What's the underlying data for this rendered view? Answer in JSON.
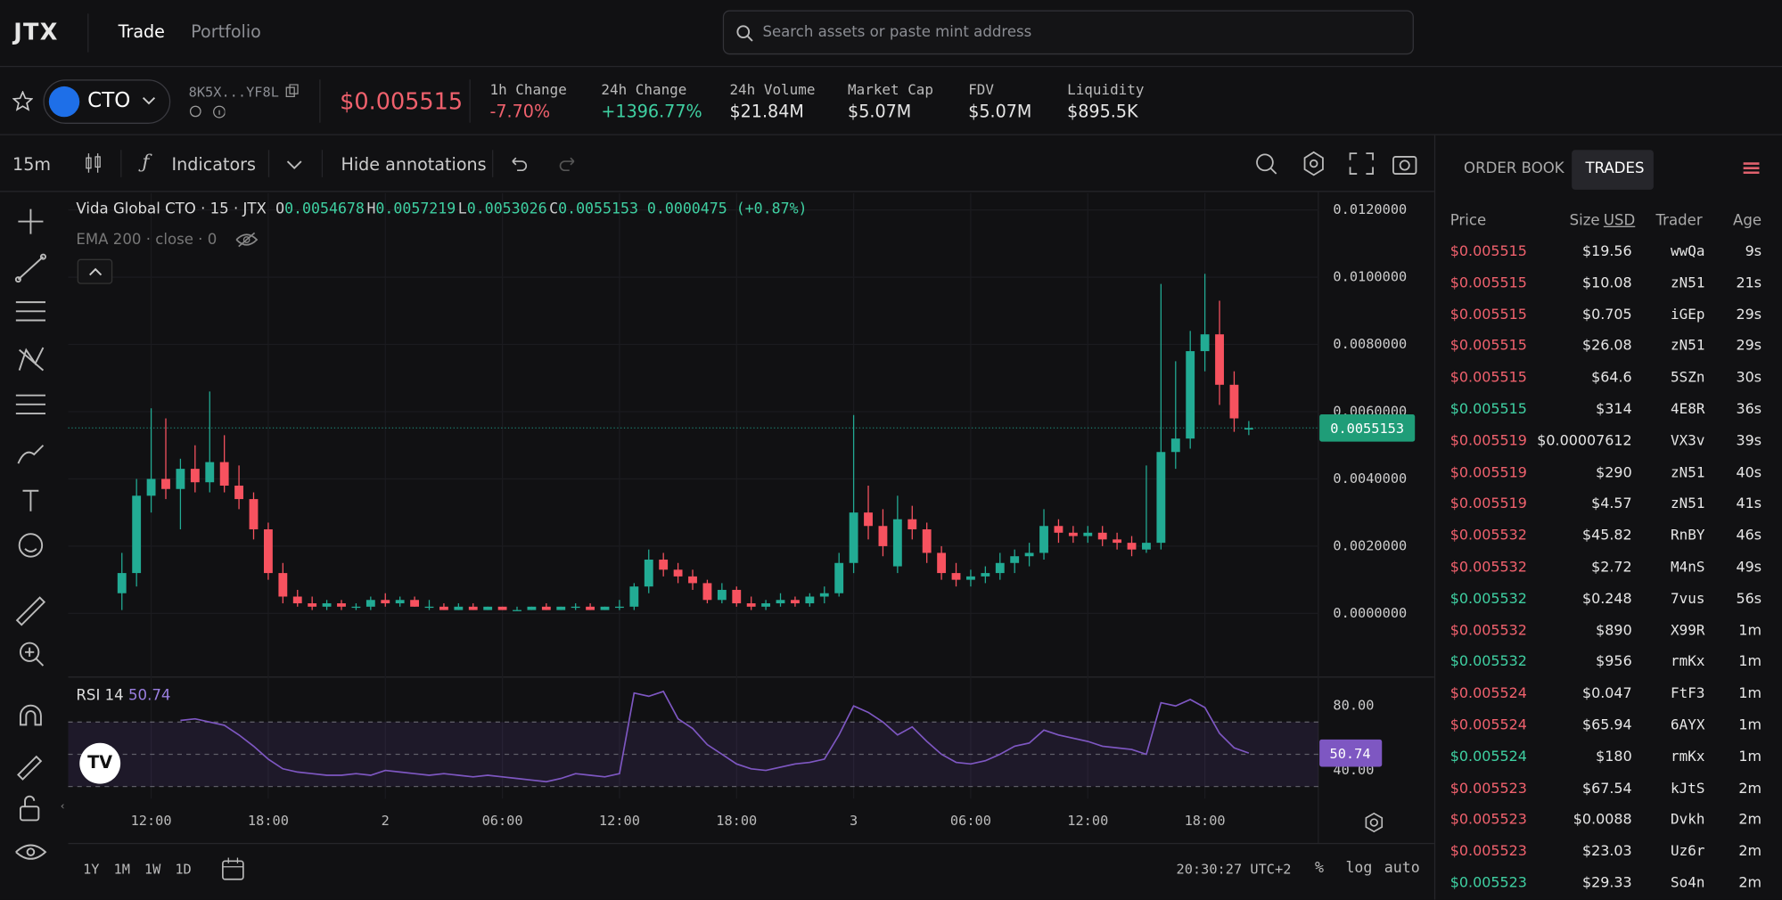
{
  "nav": {
    "logo": "JTX",
    "tabs": [
      "Trade",
      "Portfolio"
    ],
    "search_placeholder": "Search assets or paste mint address"
  },
  "ticker": {
    "symbol": "CTO",
    "address": "8K5X...YF8L",
    "price": "$0.005515",
    "stats": [
      {
        "label": "1h Change",
        "value": "-7.70%",
        "color": "#f0616d"
      },
      {
        "label": "24h Change",
        "value": "+1396.77%",
        "color": "#3fd0a2"
      },
      {
        "label": "24h Volume",
        "value": "$21.84M",
        "color": "#e6e6e6"
      },
      {
        "label": "Market Cap",
        "value": "$5.07M",
        "color": "#e6e6e6"
      },
      {
        "label": "FDV",
        "value": "$5.07M",
        "color": "#e6e6e6"
      },
      {
        "label": "Liquidity",
        "value": "$895.5K",
        "color": "#e6e6e6"
      }
    ]
  },
  "toolbar": {
    "interval": "15m",
    "indicators": "Indicators",
    "hide_annotations": "Hide annotations"
  },
  "chart_data": {
    "type": "candlestick",
    "legend": {
      "title": "Vida Global CTO · 15 · JTX",
      "fields": [
        {
          "key": "O",
          "value": "0.0054678"
        },
        {
          "key": "H",
          "value": "0.0057219"
        },
        {
          "key": "L",
          "value": "0.0053026"
        },
        {
          "key": "C",
          "value": "0.0055153"
        }
      ],
      "change": "0.0000475 (+0.87%)"
    },
    "ema": "EMA 200 · close · 0",
    "up_color": "#22ab94",
    "down_color": "#f7525f",
    "candles": [
      [
        0.0006,
        0.0018,
        0.0001,
        0.0012
      ],
      [
        0.0012,
        0.004,
        0.0008,
        0.0035
      ],
      [
        0.0035,
        0.0061,
        0.003,
        0.004
      ],
      [
        0.004,
        0.0058,
        0.0034,
        0.0037
      ],
      [
        0.0037,
        0.0046,
        0.0025,
        0.0043
      ],
      [
        0.0043,
        0.005,
        0.0036,
        0.0039
      ],
      [
        0.0039,
        0.0066,
        0.0036,
        0.0045
      ],
      [
        0.0045,
        0.0053,
        0.0036,
        0.0038
      ],
      [
        0.0038,
        0.0044,
        0.0031,
        0.0034
      ],
      [
        0.0034,
        0.0036,
        0.0022,
        0.0025
      ],
      [
        0.0025,
        0.0027,
        0.001,
        0.0012
      ],
      [
        0.0012,
        0.0015,
        0.0003,
        0.0005
      ],
      [
        0.0005,
        0.0007,
        0.0002,
        0.0003
      ],
      [
        0.0003,
        0.0005,
        0.0001,
        0.0002
      ],
      [
        0.0002,
        0.0004,
        0.0001,
        0.0003
      ],
      [
        0.0003,
        0.0004,
        0.0001,
        0.0002
      ],
      [
        0.0002,
        0.0003,
        0.0001,
        0.0002
      ],
      [
        0.0002,
        0.0005,
        0.0001,
        0.0004
      ],
      [
        0.0004,
        0.0006,
        0.0002,
        0.0003
      ],
      [
        0.0003,
        0.0005,
        0.0002,
        0.0004
      ],
      [
        0.0004,
        0.0005,
        0.0002,
        0.0002
      ],
      [
        0.0002,
        0.0004,
        0.0001,
        0.0002
      ],
      [
        0.0002,
        0.0003,
        0.0001,
        0.0001
      ],
      [
        0.0001,
        0.0003,
        0.0001,
        0.0002
      ],
      [
        0.0002,
        0.0003,
        0.0001,
        0.0001
      ],
      [
        0.0001,
        0.0002,
        0.0001,
        0.0002
      ],
      [
        0.0002,
        0.0002,
        0.0001,
        0.0001
      ],
      [
        0.0001,
        0.0002,
        0.0001,
        0.0001
      ],
      [
        0.0001,
        0.0002,
        0.0001,
        0.0002
      ],
      [
        0.0002,
        0.0003,
        0.0001,
        0.0001
      ],
      [
        0.0001,
        0.0002,
        0.0001,
        0.0002
      ],
      [
        0.0002,
        0.0003,
        0.0001,
        0.0002
      ],
      [
        0.0002,
        0.0003,
        0.0001,
        0.0001
      ],
      [
        0.0001,
        0.0002,
        0.0001,
        0.0002
      ],
      [
        0.0002,
        0.0004,
        0.0001,
        0.0002
      ],
      [
        0.0002,
        0.0009,
        0.0001,
        0.0008
      ],
      [
        0.0008,
        0.0019,
        0.0006,
        0.0016
      ],
      [
        0.0016,
        0.0018,
        0.0011,
        0.0013
      ],
      [
        0.0013,
        0.0015,
        0.0009,
        0.0011
      ],
      [
        0.0011,
        0.0013,
        0.0007,
        0.0009
      ],
      [
        0.0009,
        0.001,
        0.0003,
        0.0004
      ],
      [
        0.0004,
        0.0009,
        0.0003,
        0.0007
      ],
      [
        0.0007,
        0.0008,
        0.0002,
        0.0003
      ],
      [
        0.0003,
        0.0005,
        0.0001,
        0.0002
      ],
      [
        0.0002,
        0.0004,
        0.0001,
        0.0003
      ],
      [
        0.0003,
        0.0006,
        0.0002,
        0.0004
      ],
      [
        0.0004,
        0.0005,
        0.0002,
        0.0003
      ],
      [
        0.0003,
        0.0006,
        0.0002,
        0.0005
      ],
      [
        0.0005,
        0.0008,
        0.0003,
        0.0006
      ],
      [
        0.0006,
        0.0018,
        0.0005,
        0.0015
      ],
      [
        0.0015,
        0.0059,
        0.0012,
        0.003
      ],
      [
        0.003,
        0.0038,
        0.0022,
        0.0026
      ],
      [
        0.0026,
        0.0031,
        0.0017,
        0.002
      ],
      [
        0.0014,
        0.0035,
        0.0012,
        0.0028
      ],
      [
        0.0028,
        0.0032,
        0.0022,
        0.0025
      ],
      [
        0.0025,
        0.0027,
        0.0015,
        0.0018
      ],
      [
        0.0018,
        0.002,
        0.001,
        0.0012
      ],
      [
        0.0012,
        0.0015,
        0.0008,
        0.001
      ],
      [
        0.001,
        0.0013,
        0.0008,
        0.0011
      ],
      [
        0.0011,
        0.0014,
        0.0009,
        0.0012
      ],
      [
        0.0012,
        0.0018,
        0.001,
        0.0015
      ],
      [
        0.0015,
        0.0019,
        0.0012,
        0.0017
      ],
      [
        0.0017,
        0.0021,
        0.0014,
        0.0018
      ],
      [
        0.0018,
        0.0031,
        0.0016,
        0.0026
      ],
      [
        0.0026,
        0.0028,
        0.0021,
        0.0024
      ],
      [
        0.0024,
        0.0026,
        0.0021,
        0.0023
      ],
      [
        0.0023,
        0.0026,
        0.0021,
        0.0024
      ],
      [
        0.0024,
        0.0026,
        0.002,
        0.0022
      ],
      [
        0.0022,
        0.0024,
        0.0019,
        0.0021
      ],
      [
        0.0021,
        0.0023,
        0.0017,
        0.0019
      ],
      [
        0.0019,
        0.0044,
        0.0018,
        0.0021
      ],
      [
        0.0021,
        0.0098,
        0.0019,
        0.0048
      ],
      [
        0.0048,
        0.0075,
        0.0043,
        0.0052
      ],
      [
        0.0052,
        0.0084,
        0.0049,
        0.0078
      ],
      [
        0.0078,
        0.0101,
        0.0072,
        0.0083
      ],
      [
        0.0083,
        0.0093,
        0.0062,
        0.0068
      ],
      [
        0.0068,
        0.0072,
        0.0054,
        0.0058
      ],
      [
        0.0054678,
        0.0057219,
        0.0053026,
        0.0055153
      ]
    ],
    "xlim": [
      -3.67,
      81.75
    ],
    "xticks": [
      {
        "value": 2,
        "label": "12:00"
      },
      {
        "value": 10,
        "label": "18:00"
      },
      {
        "value": 18,
        "label": "2"
      },
      {
        "value": 26,
        "label": "06:00"
      },
      {
        "value": 34,
        "label": "12:00"
      },
      {
        "value": 42,
        "label": "18:00"
      },
      {
        "value": 50,
        "label": "3"
      },
      {
        "value": 58,
        "label": "06:00"
      },
      {
        "value": 66,
        "label": "12:00"
      },
      {
        "value": 74,
        "label": "18:00"
      }
    ],
    "ylim": [
      -0.00186,
      0.0125
    ],
    "yticks": [
      {
        "value": 0.012,
        "label": "0.0120000"
      },
      {
        "value": 0.01,
        "label": "0.0100000"
      },
      {
        "value": 0.008,
        "label": "0.0080000"
      },
      {
        "value": 0.006,
        "label": "0.0060000"
      },
      {
        "value": 0.004,
        "label": "0.0040000"
      },
      {
        "value": 0.002,
        "label": "0.0020000"
      },
      {
        "value": 0,
        "label": "0.0000000"
      }
    ],
    "grid": true,
    "last_price": {
      "value": 0.0055153,
      "label": "0.0055153"
    },
    "rsi": {
      "title": "RSI 14",
      "color": "#7e57c2",
      "ylim": [
        22.5,
        97.2
      ],
      "yticks": [
        {
          "value": 80,
          "label": "80.00"
        },
        {
          "value": 40,
          "label": "40.00"
        }
      ],
      "levels": [
        70,
        50,
        30
      ],
      "values": [
        null,
        null,
        null,
        null,
        71,
        72,
        70,
        68,
        62,
        55,
        47,
        41,
        39,
        38,
        37,
        37,
        38,
        37,
        40,
        39,
        38,
        37,
        38,
        37,
        36,
        37,
        36,
        35,
        34,
        33,
        35,
        38,
        37,
        36,
        38,
        88,
        86,
        89,
        72,
        66,
        56,
        50,
        44,
        41,
        40,
        42,
        44,
        45,
        47,
        62,
        80,
        76,
        70,
        62,
        67,
        58,
        50,
        45,
        44,
        46,
        50,
        55,
        57,
        65,
        62,
        60,
        58,
        55,
        54,
        53,
        50,
        82,
        80,
        84,
        79,
        63,
        54,
        50.74
      ],
      "last": {
        "value": 50.74,
        "label": "50.74"
      }
    }
  },
  "bottom": {
    "ranges": [
      "1Y",
      "1M",
      "1W",
      "1D"
    ],
    "clock": "20:30:27 UTC+2",
    "scale_options": [
      "%",
      "log",
      "auto"
    ]
  },
  "trades": {
    "tabs": [
      "ORDER BOOK",
      "TRADES"
    ],
    "columns": [
      "Price",
      "Size",
      "Trader",
      "Age"
    ],
    "unit": "USD",
    "rows": [
      {
        "price": "$0.005515",
        "size": "$19.56",
        "trader": "wwQa",
        "age": "9s",
        "color": "#f0616d"
      },
      {
        "price": "$0.005515",
        "size": "$10.08",
        "trader": "zN51",
        "age": "21s",
        "color": "#f0616d"
      },
      {
        "price": "$0.005515",
        "size": "$0.705",
        "trader": "iGEp",
        "age": "29s",
        "color": "#f0616d"
      },
      {
        "price": "$0.005515",
        "size": "$26.08",
        "trader": "zN51",
        "age": "29s",
        "color": "#f0616d"
      },
      {
        "price": "$0.005515",
        "size": "$64.6",
        "trader": "5SZn",
        "age": "30s",
        "color": "#f0616d"
      },
      {
        "price": "$0.005515",
        "size": "$314",
        "trader": "4E8R",
        "age": "36s",
        "color": "#3fd0a2"
      },
      {
        "price": "$0.005519",
        "size": "$0.00007612",
        "trader": "VX3v",
        "age": "39s",
        "color": "#f0616d"
      },
      {
        "price": "$0.005519",
        "size": "$290",
        "trader": "zN51",
        "age": "40s",
        "color": "#f0616d"
      },
      {
        "price": "$0.005519",
        "size": "$4.57",
        "trader": "zN51",
        "age": "41s",
        "color": "#f0616d"
      },
      {
        "price": "$0.005532",
        "size": "$45.82",
        "trader": "RnBY",
        "age": "46s",
        "color": "#f0616d"
      },
      {
        "price": "$0.005532",
        "size": "$2.72",
        "trader": "M4nS",
        "age": "49s",
        "color": "#f0616d"
      },
      {
        "price": "$0.005532",
        "size": "$0.248",
        "trader": "7vus",
        "age": "56s",
        "color": "#3fd0a2"
      },
      {
        "price": "$0.005532",
        "size": "$890",
        "trader": "X99R",
        "age": "1m",
        "color": "#f0616d"
      },
      {
        "price": "$0.005532",
        "size": "$956",
        "trader": "rmKx",
        "age": "1m",
        "color": "#3fd0a2"
      },
      {
        "price": "$0.005524",
        "size": "$0.047",
        "trader": "FtF3",
        "age": "1m",
        "color": "#f0616d"
      },
      {
        "price": "$0.005524",
        "size": "$65.94",
        "trader": "6AYX",
        "age": "1m",
        "color": "#f0616d"
      },
      {
        "price": "$0.005524",
        "size": "$180",
        "trader": "rmKx",
        "age": "1m",
        "color": "#3fd0a2"
      },
      {
        "price": "$0.005523",
        "size": "$67.54",
        "trader": "kJtS",
        "age": "2m",
        "color": "#f0616d"
      },
      {
        "price": "$0.005523",
        "size": "$0.0088",
        "trader": "Dvkh",
        "age": "2m",
        "color": "#f0616d"
      },
      {
        "price": "$0.005523",
        "size": "$23.03",
        "trader": "Uz6r",
        "age": "2m",
        "color": "#f0616d"
      },
      {
        "price": "$0.005523",
        "size": "$29.33",
        "trader": "So4n",
        "age": "2m",
        "color": "#3fd0a2"
      }
    ]
  }
}
